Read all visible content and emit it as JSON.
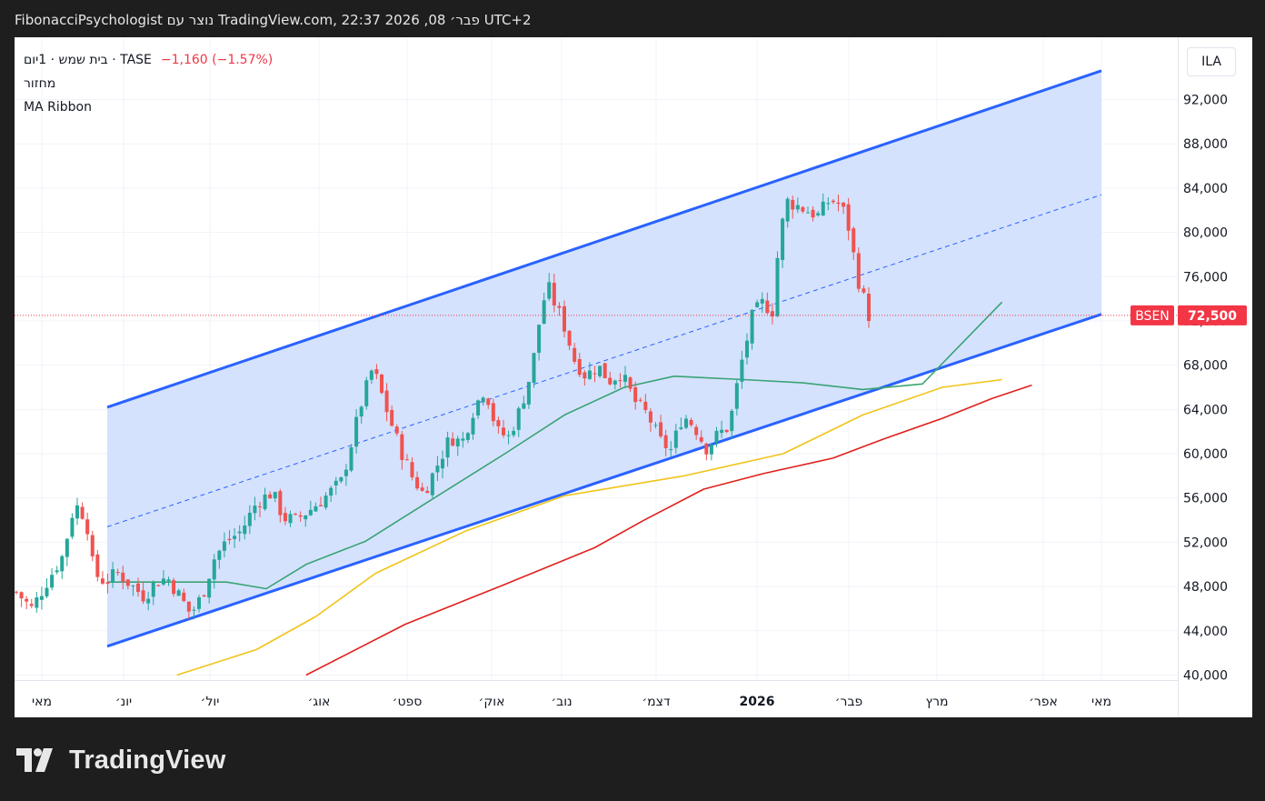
{
  "header": {
    "text": "FibonacciPsychologist נוצר עם TradingView.com, 22:37 2026 ,08 פבר׳ UTC+2"
  },
  "legend": {
    "line1": "בית שמש · 1יום · TASE",
    "change": "−1,160 (−1.57%)",
    "line2": "מחזור",
    "line3": "MA Ribbon"
  },
  "currency": "ILA",
  "price_badge": {
    "symbol": "BSEN",
    "value": "72,500",
    "color": "#f23645"
  },
  "brand": {
    "name": "TradingView"
  },
  "colors": {
    "up": "#26a69a",
    "down": "#ef5350",
    "channel_line": "#2962ff",
    "channel_fill": "#d2e0fe",
    "ma_green": "#3aa374",
    "ma_yellow": "#f0c419",
    "ma_red": "#e0201c"
  },
  "chart_data": {
    "type": "candlestick",
    "symbol": "BSEN",
    "y_ticks": [
      "40,000",
      "44,000",
      "48,000",
      "52,000",
      "56,000",
      "60,000",
      "64,000",
      "68,000",
      "72,000",
      "76,000",
      "80,000",
      "84,000",
      "88,000",
      "92,000"
    ],
    "x_ticks": [
      "מאי",
      "יונ׳",
      "יול׳",
      "אוג׳",
      "ספט׳",
      "אוק׳",
      "נוב׳",
      "דצמ׳",
      "2026",
      "פבר׳",
      "מרץ",
      "אפר׳",
      "מאי"
    ],
    "ylim": [
      40000,
      94500
    ],
    "last_price": 72500,
    "channel": {
      "upper": {
        "from": [
          0.0,
          64200
        ],
        "to": [
          1.0,
          94600
        ]
      },
      "mid": {
        "from": [
          0.0,
          53400
        ],
        "to": [
          1.0,
          83400
        ]
      },
      "lower": {
        "from": [
          0.0,
          42600
        ],
        "to": [
          1.0,
          72600
        ]
      }
    },
    "ohlc_close_path": [
      [
        0.0,
        47500
      ],
      [
        0.02,
        46000
      ],
      [
        0.04,
        48500
      ],
      [
        0.06,
        50800
      ],
      [
        0.075,
        55500
      ],
      [
        0.09,
        54200
      ],
      [
        0.1,
        49200
      ],
      [
        0.115,
        48400
      ],
      [
        0.13,
        49300
      ],
      [
        0.15,
        48000
      ],
      [
        0.165,
        47100
      ],
      [
        0.18,
        48400
      ],
      [
        0.195,
        48800
      ],
      [
        0.21,
        47200
      ],
      [
        0.225,
        45500
      ],
      [
        0.24,
        47200
      ],
      [
        0.255,
        50500
      ],
      [
        0.27,
        52000
      ],
      [
        0.29,
        53000
      ],
      [
        0.31,
        55600
      ],
      [
        0.33,
        56500
      ],
      [
        0.345,
        54200
      ],
      [
        0.36,
        54000
      ],
      [
        0.38,
        55000
      ],
      [
        0.4,
        56200
      ],
      [
        0.42,
        57500
      ],
      [
        0.445,
        64500
      ],
      [
        0.46,
        67800
      ],
      [
        0.48,
        63500
      ],
      [
        0.495,
        60500
      ],
      [
        0.51,
        58000
      ],
      [
        0.525,
        56400
      ],
      [
        0.54,
        58500
      ],
      [
        0.56,
        61500
      ],
      [
        0.575,
        61000
      ],
      [
        0.59,
        64000
      ],
      [
        0.605,
        66000
      ],
      [
        0.62,
        62000
      ],
      [
        0.635,
        61500
      ],
      [
        0.65,
        64000
      ],
      [
        0.665,
        67500
      ],
      [
        0.675,
        72000
      ],
      [
        0.685,
        75300
      ],
      [
        0.695,
        73500
      ],
      [
        0.705,
        72000
      ],
      [
        0.72,
        68500
      ],
      [
        0.735,
        67000
      ],
      [
        0.75,
        68000
      ],
      [
        0.765,
        66600
      ],
      [
        0.78,
        67300
      ],
      [
        0.8,
        64500
      ],
      [
        0.815,
        63500
      ],
      [
        0.83,
        61200
      ],
      [
        0.845,
        60300
      ],
      [
        0.86,
        63500
      ],
      [
        0.875,
        62500
      ],
      [
        0.89,
        60500
      ],
      [
        0.905,
        61700
      ],
      [
        0.92,
        62500
      ],
      [
        0.935,
        68000
      ],
      [
        0.95,
        72500
      ],
      [
        0.965,
        73800
      ],
      [
        0.975,
        72500
      ],
      [
        0.985,
        79800
      ],
      [
        0.995,
        82800
      ],
      [
        1.005,
        82500
      ],
      [
        1.02,
        82000
      ],
      [
        1.035,
        81500
      ],
      [
        1.05,
        83000
      ],
      [
        1.065,
        82400
      ],
      [
        1.075,
        80200
      ],
      [
        1.085,
        76000
      ],
      [
        1.095,
        73700
      ],
      [
        1.1,
        72500
      ]
    ],
    "ma_ribbon": {
      "green": [
        [
          0.0,
          48400
        ],
        [
          0.12,
          48400
        ],
        [
          0.16,
          47800
        ],
        [
          0.2,
          50000
        ],
        [
          0.26,
          52100
        ],
        [
          0.32,
          55500
        ],
        [
          0.4,
          60000
        ],
        [
          0.46,
          63500
        ],
        [
          0.52,
          66000
        ],
        [
          0.57,
          67000
        ],
        [
          0.64,
          66700
        ],
        [
          0.7,
          66400
        ],
        [
          0.76,
          65800
        ],
        [
          0.82,
          66300
        ],
        [
          0.86,
          70000
        ],
        [
          0.9,
          73700
        ]
      ],
      "yellow": [
        [
          0.07,
          40000
        ],
        [
          0.15,
          42300
        ],
        [
          0.21,
          45300
        ],
        [
          0.27,
          49200
        ],
        [
          0.36,
          53000
        ],
        [
          0.46,
          56200
        ],
        [
          0.58,
          58000
        ],
        [
          0.68,
          60000
        ],
        [
          0.76,
          63500
        ],
        [
          0.84,
          66000
        ],
        [
          0.9,
          66700
        ]
      ],
      "red": [
        [
          0.2,
          40000
        ],
        [
          0.3,
          44600
        ],
        [
          0.4,
          48200
        ],
        [
          0.49,
          51500
        ],
        [
          0.54,
          54000
        ],
        [
          0.6,
          56800
        ],
        [
          0.66,
          58200
        ],
        [
          0.73,
          59600
        ],
        [
          0.78,
          61300
        ],
        [
          0.84,
          63200
        ],
        [
          0.89,
          65000
        ],
        [
          0.93,
          66200
        ]
      ]
    }
  }
}
